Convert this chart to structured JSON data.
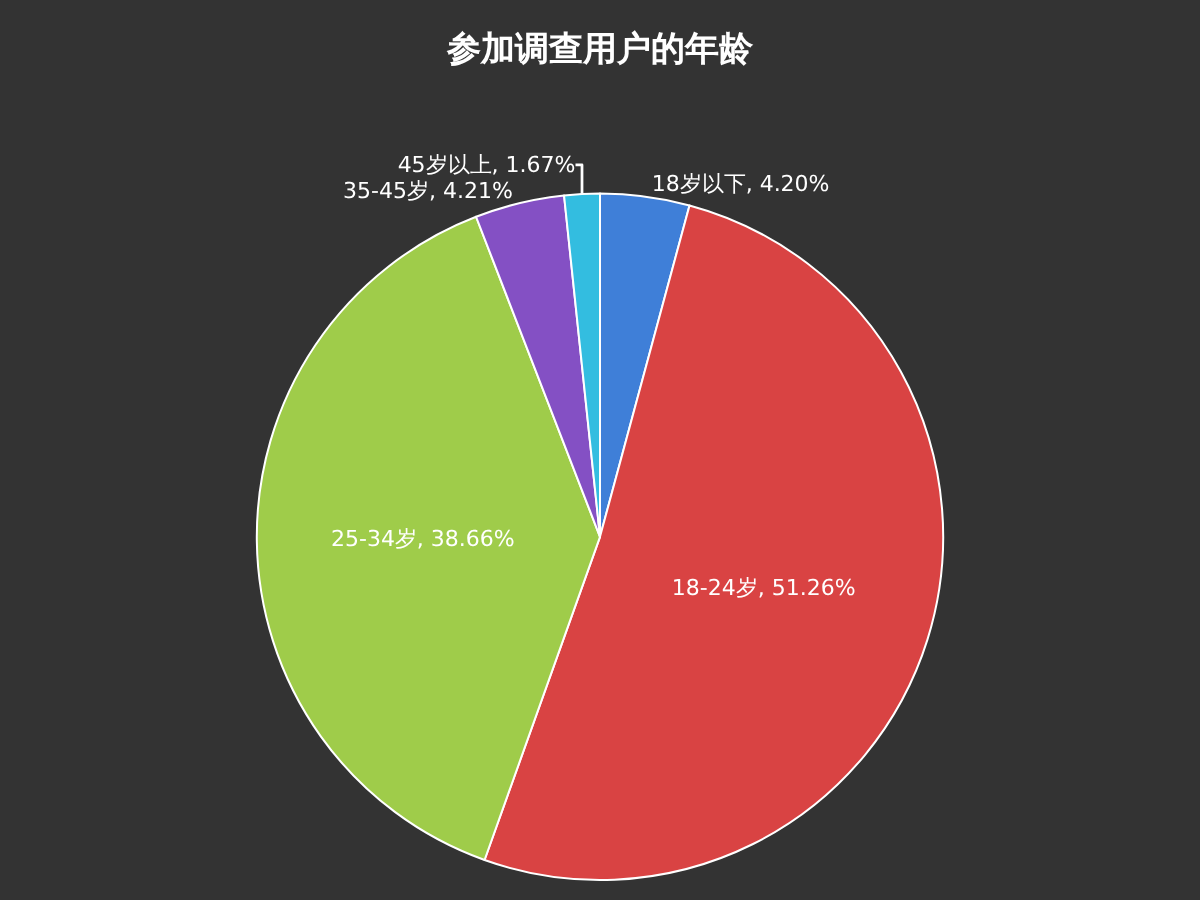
{
  "chart_data": {
    "type": "pie",
    "title": "参加调查用户的年龄",
    "categories": [
      "18岁以下",
      "18-24岁",
      "25-34岁",
      "35-45岁",
      "45岁以上"
    ],
    "values": [
      4.2,
      51.26,
      38.66,
      4.21,
      1.67
    ],
    "value_labels": [
      "4.20%",
      "51.26%",
      "38.66%",
      "4.21%",
      "1.67%"
    ],
    "colors": [
      "#3f7fd8",
      "#d94343",
      "#9fcc4a",
      "#8450c4",
      "#33bde0"
    ],
    "legend": false
  }
}
